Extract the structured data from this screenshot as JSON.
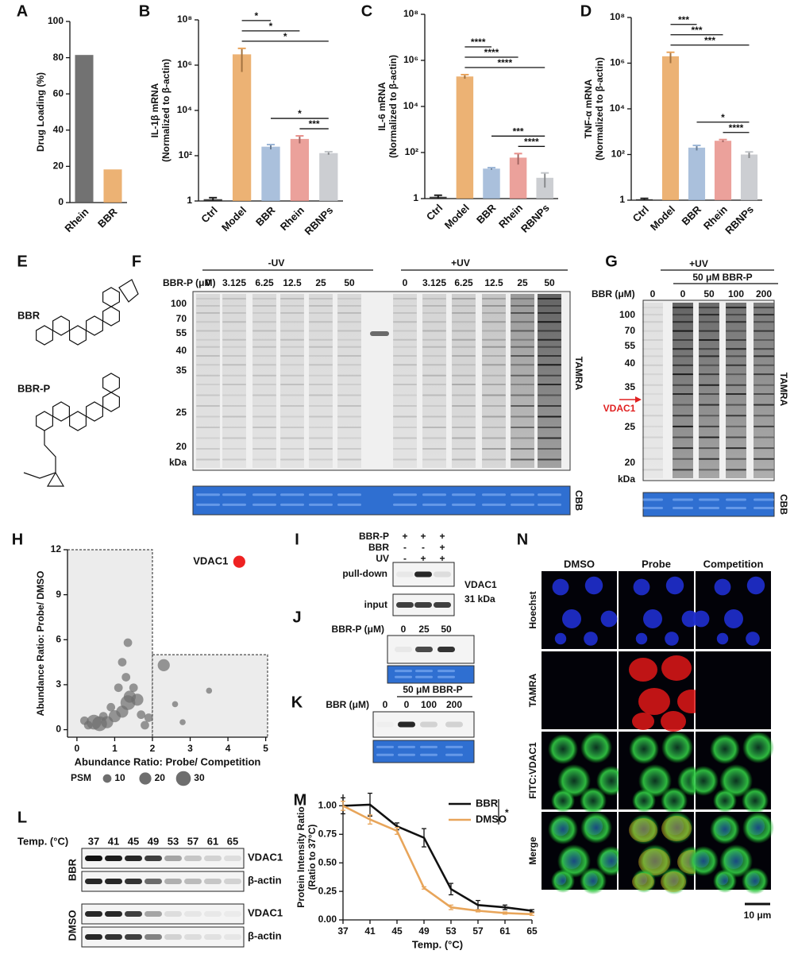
{
  "chart_data": [
    {
      "panel": "A",
      "type": "bar",
      "categories": [
        "Rhein",
        "BBR"
      ],
      "values": [
        81.5,
        18.3
      ],
      "colors": [
        "#595959",
        "#e9a45c"
      ],
      "ylim": [
        0,
        100
      ],
      "yticks": [
        0,
        20,
        40,
        60,
        80,
        100
      ],
      "ylabel": [
        "Drug Loading (%)"
      ]
    },
    {
      "panel": "B",
      "type": "bar",
      "log": true,
      "categories": [
        "Ctrl",
        "Model",
        "BBR",
        "Rhein",
        "RBNPs"
      ],
      "values": [
        1.2,
        3000000,
        250,
        550,
        130
      ],
      "errors": [
        0.2,
        2500000,
        60,
        200,
        20
      ],
      "colors": [
        "#222222",
        "#e9a45c",
        "#9bb5d6",
        "#e8908a",
        "#c3c6ca"
      ],
      "ylim": [
        1,
        100000000
      ],
      "yticks": [
        1,
        {
          "value": 100,
          "label": "10²"
        },
        {
          "value": 10000,
          "label": "10⁴"
        },
        {
          "value": 1000000,
          "label": "10⁶"
        },
        {
          "value": 100000000,
          "label": "10⁸"
        }
      ],
      "ylabel": [
        "IL-1β mRNA",
        "(Normalized to β-actin)"
      ],
      "comparisons": [
        {
          "label": "*",
          "pair": [
            "Model",
            "BBR"
          ]
        },
        {
          "label": "*",
          "pair": [
            "Model",
            "Rhein"
          ]
        },
        {
          "label": "*",
          "pair": [
            "Model",
            "RBNPs"
          ]
        },
        {
          "label": "*",
          "pair": [
            "BBR",
            "RBNPs"
          ]
        },
        {
          "label": "***",
          "pair": [
            "Rhein",
            "RBNPs"
          ]
        }
      ]
    },
    {
      "panel": "C",
      "type": "bar",
      "log": true,
      "categories": [
        "Ctrl",
        "Model",
        "BBR",
        "Rhein",
        "RBNPs"
      ],
      "values": [
        1.2,
        200000,
        20,
        60,
        8
      ],
      "errors": [
        0.2,
        40000,
        2,
        30,
        5
      ],
      "colors": [
        "#222222",
        "#e9a45c",
        "#9bb5d6",
        "#e8908a",
        "#c3c6ca"
      ],
      "ylim": [
        1,
        100000000
      ],
      "yticks": [
        1,
        {
          "value": 100,
          "label": "10²"
        },
        {
          "value": 10000,
          "label": "10⁴"
        },
        {
          "value": 1000000,
          "label": "10⁶"
        },
        {
          "value": 100000000,
          "label": "10⁸"
        }
      ],
      "ylabel": [
        "IL-6 mRNA",
        "(Normalized to β-actin)"
      ],
      "comparisons": [
        {
          "label": "****",
          "pair": [
            "Model",
            "BBR"
          ]
        },
        {
          "label": "****",
          "pair": [
            "Model",
            "Rhein"
          ]
        },
        {
          "label": "****",
          "pair": [
            "Model",
            "RBNPs"
          ]
        },
        {
          "label": "***",
          "pair": [
            "BBR",
            "RBNPs"
          ]
        },
        {
          "label": "****",
          "pair": [
            "Rhein",
            "RBNPs"
          ]
        }
      ]
    },
    {
      "panel": "D",
      "type": "bar",
      "log": true,
      "categories": [
        "Ctrl",
        "Model",
        "BBR",
        "Rhein",
        "RBNPs"
      ],
      "values": [
        1.1,
        2000000,
        200,
        400,
        100
      ],
      "errors": [
        0.1,
        1000000,
        50,
        50,
        30
      ],
      "colors": [
        "#222222",
        "#e9a45c",
        "#9bb5d6",
        "#e8908a",
        "#c3c6ca"
      ],
      "ylim": [
        1,
        100000000
      ],
      "yticks": [
        1,
        {
          "value": 100,
          "label": "10²"
        },
        {
          "value": 10000,
          "label": "10⁴"
        },
        {
          "value": 1000000,
          "label": "10⁶"
        },
        {
          "value": 100000000,
          "label": "10⁸"
        }
      ],
      "ylabel": [
        "TNF-α mRNA",
        "(Normalized to β-actin)"
      ],
      "comparisons": [
        {
          "label": "***",
          "pair": [
            "Model",
            "BBR"
          ]
        },
        {
          "label": "***",
          "pair": [
            "Model",
            "Rhein"
          ]
        },
        {
          "label": "***",
          "pair": [
            "Model",
            "RBNPs"
          ]
        },
        {
          "label": "*",
          "pair": [
            "BBR",
            "RBNPs"
          ]
        },
        {
          "label": "****",
          "pair": [
            "Rhein",
            "RBNPs"
          ]
        }
      ]
    },
    {
      "panel": "H",
      "type": "scatter",
      "xlabel": "Abundance Ratio: Probe/ Competition",
      "ylabel": [
        "Abundance Ratio: Probe/ DMSO"
      ],
      "xlim": [
        -0.25,
        5.05
      ],
      "ylim": [
        -0.5,
        12
      ],
      "xticks": [
        0,
        1,
        2,
        3,
        4,
        5
      ],
      "yticks": [
        0,
        3,
        6,
        9,
        12
      ],
      "cutoffs": {
        "x": 2,
        "y": 5
      },
      "series": [
        {
          "color": "#6e6e6e",
          "x": [
            0.45,
            0.6,
            0.8,
            0.3,
            1.0,
            1.2,
            1.35,
            1.4,
            0.9,
            1.3,
            1.35,
            1.2,
            1.5,
            1.7,
            1.8,
            0.2,
            1.1,
            1.6,
            2.3,
            2.6,
            3.5,
            2.8,
            1.9,
            0.7
          ],
          "values": [
            0.5,
            0.4,
            0.5,
            0.3,
            0.9,
            1.2,
            1.8,
            2.2,
            1.5,
            3.5,
            5.8,
            4.5,
            2.8,
            1.0,
            0.3,
            0.6,
            2.8,
            2.0,
            4.3,
            1.7,
            2.6,
            0.5,
            0.8,
            0.9
          ],
          "sizes": [
            30,
            30,
            20,
            10,
            20,
            20,
            30,
            20,
            10,
            10,
            10,
            10,
            10,
            10,
            10,
            10,
            10,
            20,
            20,
            5,
            5,
            5,
            10,
            10
          ]
        },
        {
          "name": "VDAC1",
          "color": "#ee2222",
          "x": [
            4.3
          ],
          "values": [
            11.2
          ],
          "sizes": [
            20
          ]
        }
      ],
      "size_legend": {
        "title": "PSM",
        "values": [
          10,
          20,
          30
        ]
      }
    },
    {
      "panel": "M",
      "type": "line",
      "xlabel": "Temp. (°C)",
      "ylabel": [
        "Protein Intensity Ratio",
        "(Ratio to 37°C)"
      ],
      "x": [
        37,
        41,
        45,
        49,
        53,
        57,
        61,
        65
      ],
      "xlim": [
        37,
        65
      ],
      "xticks": [
        37,
        41,
        45,
        49,
        53,
        57,
        61,
        65
      ],
      "ylim": [
        0,
        1.1
      ],
      "yticks": [
        {
          "value": 0,
          "label": "0.00"
        },
        {
          "value": 0.25,
          "label": "0.25"
        },
        {
          "value": 0.5,
          "label": "0.50"
        },
        {
          "value": 0.75,
          "label": "0.75"
        },
        {
          "value": 1,
          "label": "1.00"
        }
      ],
      "series": [
        {
          "name": "BBR",
          "color": "#111111",
          "values": [
            1.0,
            1.01,
            0.82,
            0.72,
            0.27,
            0.13,
            0.11,
            0.08
          ],
          "errors": [
            0.07,
            0.1,
            0.03,
            0.08,
            0.05,
            0.04,
            0.02,
            0.01
          ]
        },
        {
          "name": "DMSO",
          "color": "#e8a55a",
          "values": [
            1.0,
            0.88,
            0.78,
            0.28,
            0.11,
            0.08,
            0.06,
            0.05
          ],
          "errors": [
            0.04,
            0.04,
            0.03,
            0.01,
            0.02,
            0.01,
            0.01,
            0.01
          ]
        }
      ],
      "legend": "upper right",
      "annotation": "*"
    }
  ],
  "panels": {
    "E": {
      "label": "E",
      "compounds": [
        "BBR",
        "BBR-P"
      ]
    },
    "F": {
      "label": "F",
      "uv_groups": [
        "-UV",
        "+UV"
      ],
      "conc_label": "BBR-P (μM)",
      "lanes": [
        "0",
        "3.125",
        "6.25",
        "12.5",
        "25",
        "50"
      ],
      "markers": [
        "100",
        "70",
        "55",
        "40",
        "35",
        "25",
        "20"
      ],
      "unit": "kDa",
      "channels": [
        "TAMRA",
        "CBB"
      ]
    },
    "G": {
      "label": "G",
      "uv": "+UV",
      "probe": "50 μM BBR-P",
      "conc_label": "BBR (μM)",
      "lanes": [
        "0",
        "0",
        "50",
        "100",
        "200"
      ],
      "markers": [
        "100",
        "70",
        "55",
        "40",
        "35",
        "25",
        "20"
      ],
      "unit": "kDa",
      "target": "VDAC1",
      "channels": [
        "TAMRA",
        "CBB"
      ]
    },
    "I": {
      "label": "I",
      "rows": [
        {
          "name": "BBR-P",
          "marks": [
            "+",
            "+",
            "+"
          ]
        },
        {
          "name": "BBR",
          "marks": [
            "-",
            "-",
            "+"
          ]
        },
        {
          "name": "UV",
          "marks": [
            "-",
            "+",
            "+"
          ]
        }
      ],
      "blots": [
        "pull-down",
        "input"
      ],
      "target": [
        "VDAC1",
        "31 kDa"
      ]
    },
    "J": {
      "label": "J",
      "conc_label": "BBR-P (μM)",
      "lanes": [
        "0",
        "25",
        "50"
      ]
    },
    "K": {
      "label": "K",
      "probe": "50 μM BBR-P",
      "conc_label": "BBR (μM)",
      "lanes": [
        "0",
        "0",
        "100",
        "200"
      ]
    },
    "L": {
      "label": "L",
      "temp_label": "Temp. (°C)",
      "temps": [
        "37",
        "41",
        "45",
        "49",
        "53",
        "57",
        "61",
        "65"
      ],
      "groups": [
        {
          "name": "BBR",
          "bands": [
            "VDAC1",
            "β-actin"
          ]
        },
        {
          "name": "DMSO",
          "bands": [
            "VDAC1",
            "β-actin"
          ]
        }
      ]
    },
    "N": {
      "label": "N",
      "columns": [
        "DMSO",
        "Probe",
        "Competition"
      ],
      "rows": [
        "Hoechst",
        "TAMRA",
        "FITC:VDAC1",
        "Merge"
      ],
      "scale": "10 μm"
    }
  }
}
